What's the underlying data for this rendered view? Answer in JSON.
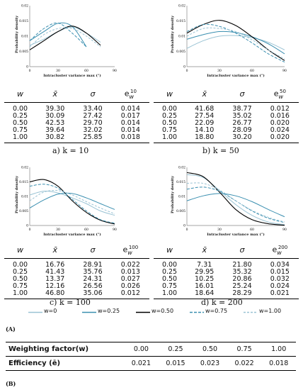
{
  "axes": {
    "y_label": "Probability density",
    "x_label": "Intracluster variance max (°)"
  },
  "chart_data": [
    {
      "type": "line",
      "panel": "a",
      "x_ticks": [
        "0",
        "30",
        "60",
        "90"
      ],
      "y_ticks": [
        "0",
        "0.005",
        "0.01",
        "0.015",
        "0.02"
      ],
      "xlim": [
        0,
        90
      ],
      "ylim": [
        0,
        0.02
      ],
      "series": [
        {
          "name": "w=0",
          "color": "#9ac3d4",
          "dash": "",
          "x": [
            0,
            15,
            30,
            45,
            60,
            75
          ],
          "y": [
            0.007,
            0.009,
            0.0115,
            0.013,
            0.011,
            0.008
          ]
        },
        {
          "name": "w=0.25",
          "color": "#3a8fb0",
          "dash": "",
          "x": [
            0,
            15,
            30,
            45,
            60
          ],
          "y": [
            0.0085,
            0.0115,
            0.0142,
            0.0132,
            0.0065
          ]
        },
        {
          "name": "w=0.50",
          "color": "#000000",
          "dash": "",
          "x": [
            0,
            15,
            30,
            45,
            60,
            75
          ],
          "y": [
            0.0055,
            0.0085,
            0.0115,
            0.0133,
            0.011,
            0.007
          ]
        },
        {
          "name": "w=0.75",
          "color": "#3a8fb0",
          "dash": "4,2",
          "x": [
            0,
            15,
            30,
            45,
            60
          ],
          "y": [
            0.0085,
            0.0125,
            0.0143,
            0.011,
            0.0065
          ]
        },
        {
          "name": "w=1.00",
          "color": "#9ac3d4",
          "dash": "3,2",
          "x": [
            0,
            15,
            30,
            45,
            60,
            75
          ],
          "y": [
            0.0065,
            0.0105,
            0.0125,
            0.0125,
            0.01,
            0.0065
          ]
        }
      ]
    },
    {
      "type": "line",
      "panel": "b",
      "x_ticks": [
        "0",
        "30",
        "60",
        "90"
      ],
      "y_ticks": [
        "0",
        "0.005",
        "0.01",
        "0.015",
        "0.02"
      ],
      "xlim": [
        0,
        90
      ],
      "ylim": [
        0,
        0.02
      ],
      "series": [
        {
          "name": "w=0",
          "color": "#9ac3d4",
          "dash": "",
          "x": [
            0,
            15,
            30,
            45,
            60,
            75,
            90
          ],
          "y": [
            0.006,
            0.0085,
            0.01,
            0.0102,
            0.0095,
            0.008,
            0.0055
          ]
        },
        {
          "name": "w=0.25",
          "color": "#3a8fb0",
          "dash": "",
          "x": [
            0,
            15,
            30,
            45,
            60,
            75,
            90
          ],
          "y": [
            0.009,
            0.0105,
            0.0115,
            0.0112,
            0.0098,
            0.0075,
            0.0042
          ]
        },
        {
          "name": "w=0.50",
          "color": "#000000",
          "dash": "",
          "x": [
            0,
            15,
            30,
            45,
            60,
            75,
            90
          ],
          "y": [
            0.011,
            0.0138,
            0.0152,
            0.0135,
            0.0098,
            0.0055,
            0.002
          ]
        },
        {
          "name": "w=0.75",
          "color": "#3a8fb0",
          "dash": "4,2",
          "x": [
            0,
            15,
            30,
            45,
            60,
            75,
            90
          ],
          "y": [
            0.0115,
            0.0138,
            0.0132,
            0.011,
            0.0078,
            0.0042,
            0.0015
          ]
        },
        {
          "name": "w=1.00",
          "color": "#9ac3d4",
          "dash": "3,2",
          "x": [
            0,
            15,
            30,
            45,
            60,
            75,
            90
          ],
          "y": [
            0.01,
            0.0125,
            0.0125,
            0.0115,
            0.0088,
            0.0055,
            0.0025
          ]
        }
      ]
    },
    {
      "type": "line",
      "panel": "c",
      "x_ticks": [
        "0",
        "30",
        "60",
        "90"
      ],
      "y_ticks": [
        "0",
        "0.005",
        "0.01",
        "0.015",
        "0.02"
      ],
      "xlim": [
        0,
        90
      ],
      "ylim": [
        0,
        0.02
      ],
      "series": [
        {
          "name": "w=0",
          "color": "#9ac3d4",
          "dash": "",
          "x": [
            0,
            15,
            30,
            45,
            60,
            75,
            90
          ],
          "y": [
            0.0105,
            0.0118,
            0.0112,
            0.0095,
            0.0075,
            0.005,
            0.0035
          ]
        },
        {
          "name": "w=0.25",
          "color": "#3a8fb0",
          "dash": "",
          "x": [
            0,
            15,
            30,
            45,
            60,
            75,
            90
          ],
          "y": [
            0.006,
            0.0088,
            0.0108,
            0.011,
            0.0095,
            0.0075,
            0.0055
          ]
        },
        {
          "name": "w=0.50",
          "color": "#000000",
          "dash": "",
          "x": [
            0,
            15,
            30,
            45,
            60,
            75,
            90
          ],
          "y": [
            0.015,
            0.0158,
            0.0135,
            0.0085,
            0.0045,
            0.0018,
            0.0005
          ]
        },
        {
          "name": "w=0.75",
          "color": "#3a8fb0",
          "dash": "4,2",
          "x": [
            0,
            15,
            30,
            45,
            60,
            75,
            90
          ],
          "y": [
            0.0135,
            0.0142,
            0.0128,
            0.009,
            0.005,
            0.002,
            0.0008
          ]
        },
        {
          "name": "w=1.00",
          "color": "#9ac3d4",
          "dash": "3,2",
          "x": [
            0,
            15,
            30,
            45,
            60,
            75,
            90
          ],
          "y": [
            0.0085,
            0.0115,
            0.012,
            0.0105,
            0.0082,
            0.006,
            0.004
          ]
        }
      ]
    },
    {
      "type": "line",
      "panel": "d",
      "x_ticks": [
        "0",
        "30",
        "60",
        "90"
      ],
      "y_ticks": [
        "0",
        "0.005",
        "0.01",
        "0.015",
        "0.02"
      ],
      "xlim": [
        0,
        90
      ],
      "ylim": [
        0,
        0.02
      ],
      "series": [
        {
          "name": "w=0",
          "color": "#9ac3d4",
          "dash": "",
          "x": [
            0,
            15,
            30,
            45,
            60,
            75,
            90
          ],
          "y": [
            0.0175,
            0.0165,
            0.012,
            0.0072,
            0.0035,
            0.0012,
            0.0003
          ]
        },
        {
          "name": "w=0.25",
          "color": "#3a8fb0",
          "dash": "",
          "x": [
            0,
            15,
            30,
            45,
            60,
            75,
            90
          ],
          "y": [
            0.0085,
            0.0102,
            0.011,
            0.0102,
            0.0082,
            0.0055,
            0.003
          ]
        },
        {
          "name": "w=0.50",
          "color": "#000000",
          "dash": "",
          "x": [
            0,
            15,
            30,
            45,
            60,
            75,
            90
          ],
          "y": [
            0.0182,
            0.0168,
            0.0115,
            0.0055,
            0.002,
            0.0006,
            0.0001
          ]
        },
        {
          "name": "w=0.75",
          "color": "#3a8fb0",
          "dash": "4,2",
          "x": [
            0,
            15,
            30,
            45,
            60,
            75,
            90
          ],
          "y": [
            0.0125,
            0.0132,
            0.0118,
            0.0085,
            0.005,
            0.0025,
            0.001
          ]
        },
        {
          "name": "w=1.00",
          "color": "#9ac3d4",
          "dash": "3,2",
          "x": [
            0,
            15,
            30,
            45,
            60,
            75,
            90
          ],
          "y": [
            0.0145,
            0.0145,
            0.0122,
            0.0085,
            0.0052,
            0.0028,
            0.0012
          ]
        }
      ]
    }
  ],
  "tables": [
    {
      "head": {
        "w": "w",
        "xbar": "x̄",
        "sigma": "σ",
        "e_base": "e",
        "e_sup": "10",
        "e_sub": "w"
      },
      "rows": [
        [
          "0.00",
          "39.30",
          "33.40",
          "0.014"
        ],
        [
          "0.25",
          "30.09",
          "27.42",
          "0.017"
        ],
        [
          "0.50",
          "42.53",
          "29.70",
          "0.014"
        ],
        [
          "0.75",
          "39.64",
          "32.02",
          "0.014"
        ],
        [
          "1.00",
          "30.82",
          "25.85",
          "0.018"
        ]
      ],
      "caption": "a) k = 10"
    },
    {
      "head": {
        "w": "w",
        "xbar": "x̄",
        "sigma": "σ",
        "e_base": "e",
        "e_sup": "50",
        "e_sub": "w"
      },
      "rows": [
        [
          "0.00",
          "41.68",
          "38.77",
          "0.012"
        ],
        [
          "0.25",
          "27.54",
          "35.02",
          "0.016"
        ],
        [
          "0.50",
          "22.09",
          "26.77",
          "0.020"
        ],
        [
          "0.75",
          "14.10",
          "28.09",
          "0.024"
        ],
        [
          "1.00",
          "18.80",
          "30.20",
          "0.020"
        ]
      ],
      "caption": "b) k = 50"
    },
    {
      "head": {
        "w": "w",
        "xbar": "x̄",
        "sigma": "σ",
        "e_base": "e",
        "e_sup": "100",
        "e_sub": "w"
      },
      "rows": [
        [
          "0.00",
          "16.76",
          "28.91",
          "0.022"
        ],
        [
          "0.25",
          "41.43",
          "35.76",
          "0.013"
        ],
        [
          "0.50",
          "13.37",
          "24.31",
          "0.027"
        ],
        [
          "0.75",
          "12.16",
          "26.56",
          "0.026"
        ],
        [
          "1.00",
          "46.80",
          "35.06",
          "0.012"
        ]
      ],
      "caption": "c) k = 100"
    },
    {
      "head": {
        "w": "w",
        "xbar": "x̄",
        "sigma": "σ",
        "e_base": "e",
        "e_sup": "200",
        "e_sub": "w"
      },
      "rows": [
        [
          "0.00",
          "7.31",
          "21.80",
          "0.034"
        ],
        [
          "0.25",
          "29.95",
          "35.32",
          "0.015"
        ],
        [
          "0.50",
          "10.25",
          "20.86",
          "0.032"
        ],
        [
          "0.75",
          "16.01",
          "25.24",
          "0.024"
        ],
        [
          "1.00",
          "18.64",
          "28.29",
          "0.021"
        ]
      ],
      "caption": "d) k = 200"
    }
  ],
  "legend": [
    {
      "label": "w=0",
      "color": "#9ac3d4",
      "dash": ""
    },
    {
      "label": "w=0.25",
      "color": "#3a8fb0",
      "dash": ""
    },
    {
      "label": "w=0.50",
      "color": "#000000",
      "dash": ""
    },
    {
      "label": "w=0.75",
      "color": "#3a8fb0",
      "dash": "4,2"
    },
    {
      "label": "w=1.00",
      "color": "#9ac3d4",
      "dash": "3,2"
    }
  ],
  "section_a": "(A)",
  "section_b": "(B)",
  "efficiency": {
    "row1_label": "Weighting factor(w)",
    "row1": [
      "0.00",
      "0.25",
      "0.50",
      "0.75",
      "1.00"
    ],
    "row2_label": "Efficiency (ē)",
    "row2": [
      "0.021",
      "0.015",
      "0.023",
      "0.022",
      "0.018"
    ]
  }
}
